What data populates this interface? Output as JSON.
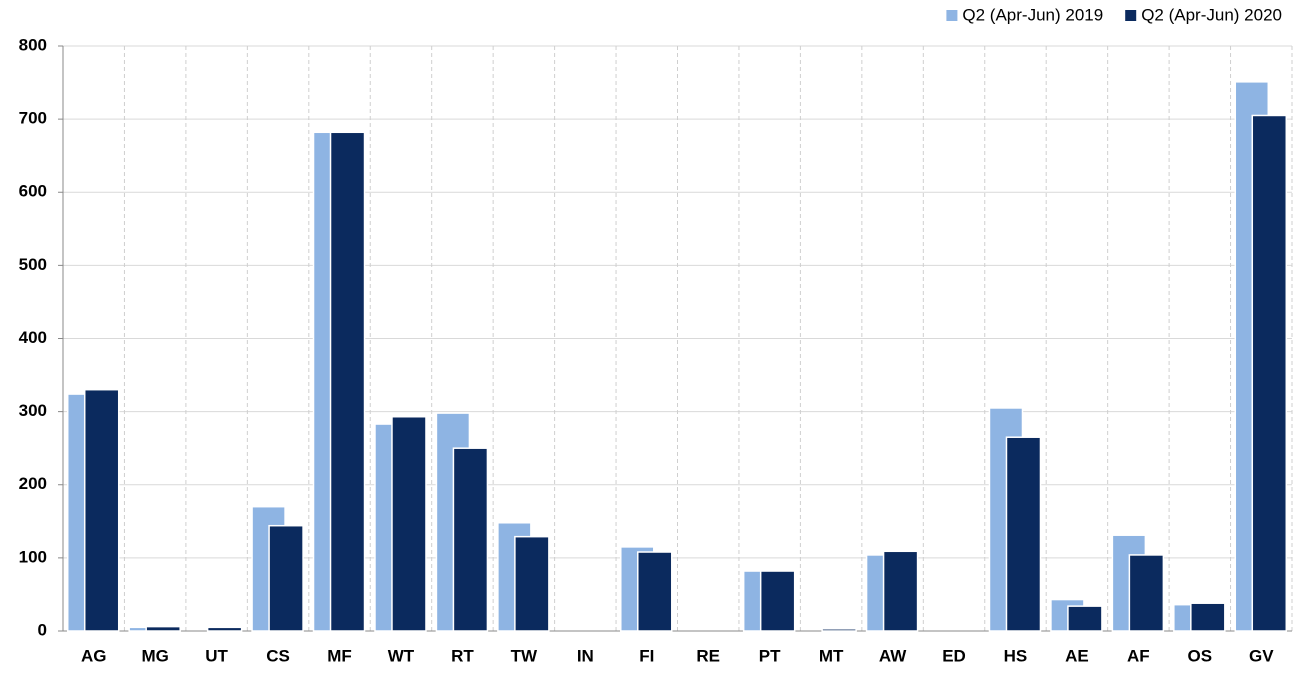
{
  "chart_data": {
    "type": "bar",
    "categories": [
      "AG",
      "MG",
      "UT",
      "CS",
      "MF",
      "WT",
      "RT",
      "TW",
      "IN",
      "FI",
      "RE",
      "PT",
      "MT",
      "AW",
      "ED",
      "HS",
      "AE",
      "AF",
      "OS",
      "GV"
    ],
    "series": [
      {
        "name": "Q2 (Apr-Jun) 2019",
        "color": "#8eb4e3",
        "values": [
          324,
          5,
          0,
          170,
          682,
          283,
          298,
          148,
          0,
          115,
          0,
          82,
          0,
          104,
          0,
          305,
          43,
          131,
          36,
          751
        ]
      },
      {
        "name": "Q2 (Apr-Jun) 2020",
        "color": "#0b2a5e",
        "values": [
          330,
          6,
          5,
          144,
          682,
          293,
          250,
          129,
          0,
          108,
          0,
          82,
          3,
          109,
          0,
          265,
          34,
          104,
          38,
          705
        ]
      }
    ],
    "ylim": [
      0,
      800
    ],
    "yticks": [
      0,
      100,
      200,
      300,
      400,
      500,
      600,
      700,
      800
    ],
    "grid": true,
    "legend": "top-right"
  }
}
